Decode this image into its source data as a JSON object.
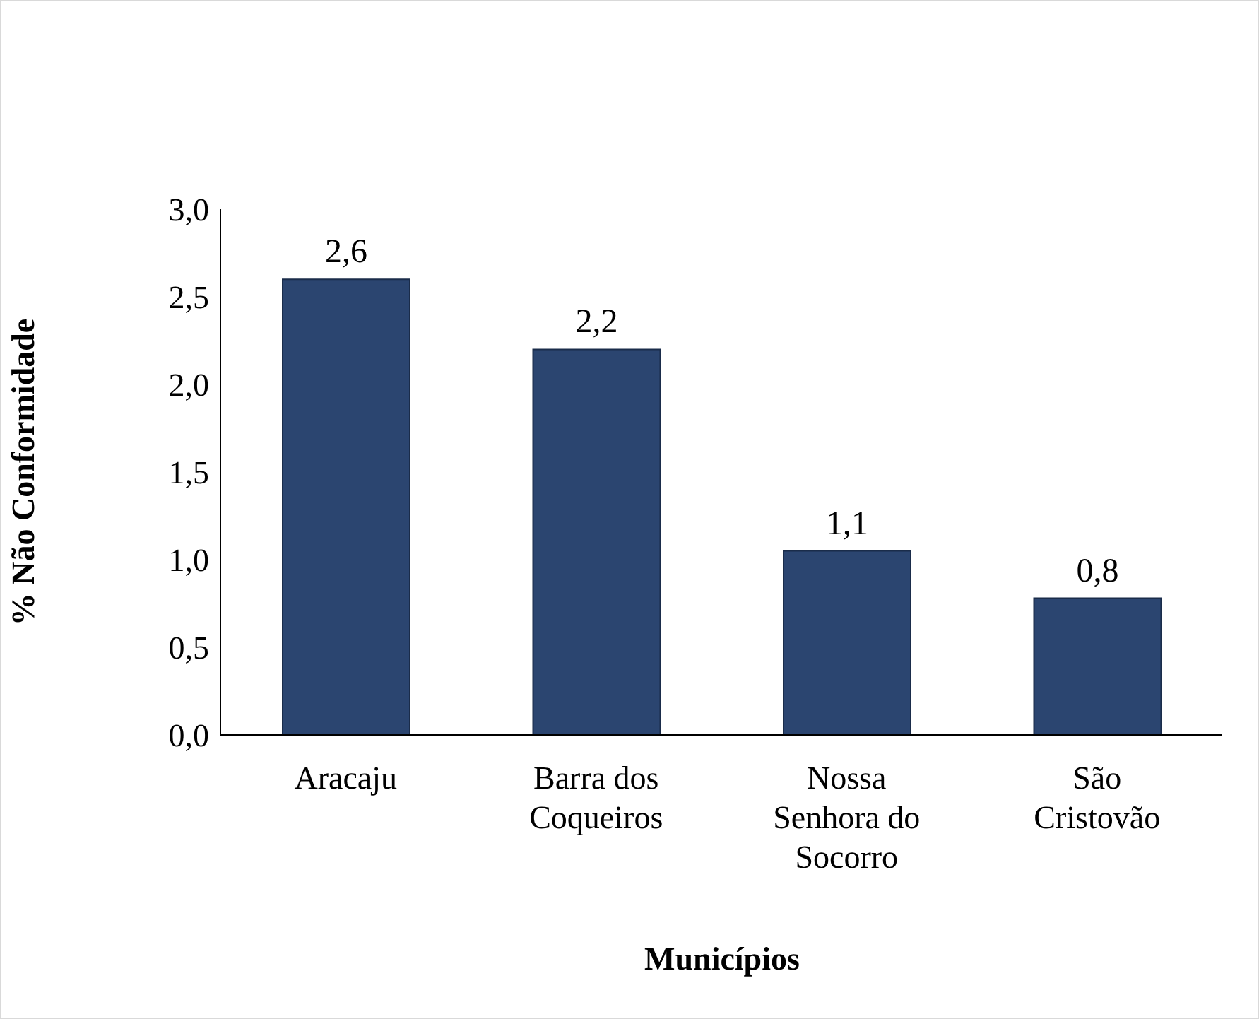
{
  "chart_data": {
    "type": "bar",
    "xlabel": "Municípios",
    "ylabel": "% Não Conformidade",
    "categories": [
      "Aracaju",
      "Barra dos Coqueiros",
      "Nossa Senhora do Socorro",
      "São Cristovão"
    ],
    "values": [
      2.6,
      2.2,
      1.05,
      0.78
    ],
    "value_labels": [
      "2,6",
      "2,2",
      "1,1",
      "0,8"
    ],
    "color": "#2b4570",
    "ylim": [
      0,
      3
    ],
    "yticks": [
      {
        "value": 0,
        "label": "0,0"
      },
      {
        "value": 0.5,
        "label": "0,5"
      },
      {
        "value": 1,
        "label": "1,0"
      },
      {
        "value": 1.5,
        "label": "1,5"
      },
      {
        "value": 2,
        "label": "2,0"
      },
      {
        "value": 2.5,
        "label": "2,5"
      },
      {
        "value": 3,
        "label": "3,0"
      }
    ],
    "grid": false,
    "legend": false
  }
}
